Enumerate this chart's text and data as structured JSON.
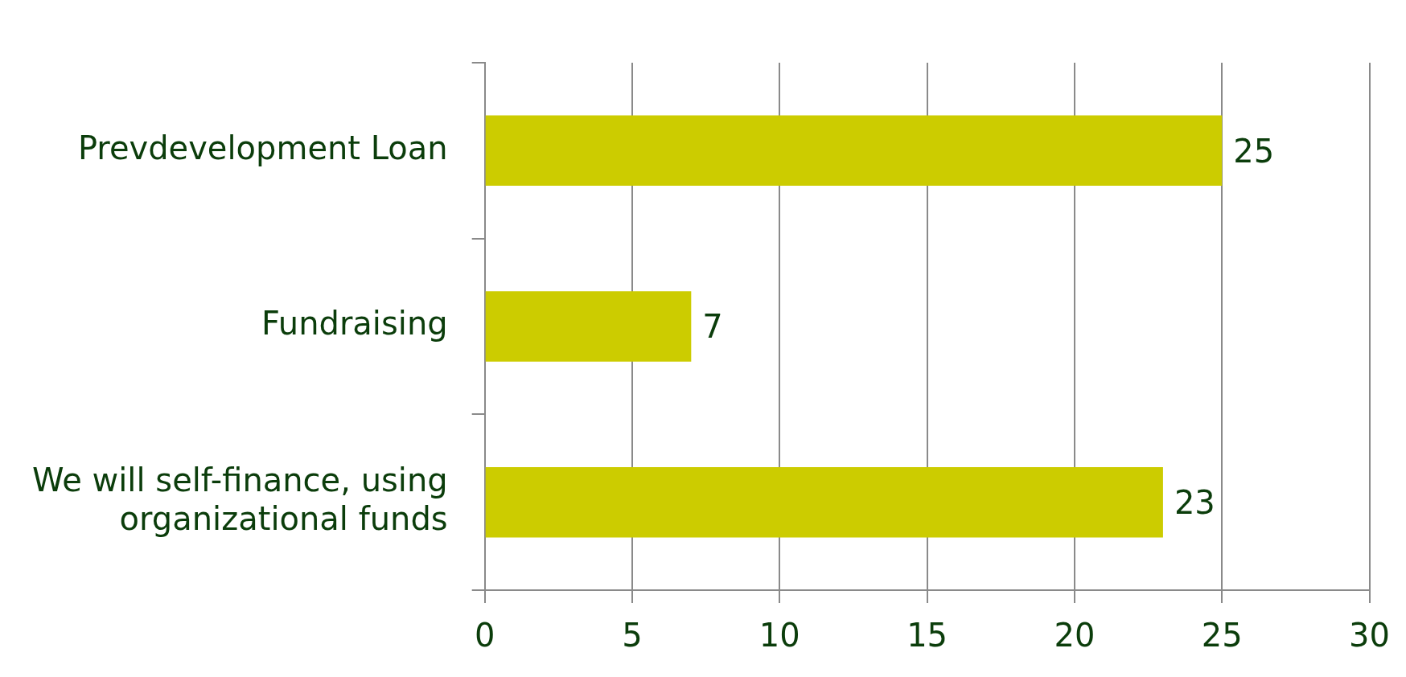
{
  "chart_data": {
    "type": "bar",
    "orientation": "horizontal",
    "categories": [
      "Prevdevelopment Loan",
      "Fundraising",
      "We will self-finance, using organizational funds"
    ],
    "values": [
      25,
      7,
      23
    ],
    "color": "#cccc00",
    "xlim": [
      0,
      30
    ],
    "xticks": [
      0,
      5,
      10,
      15,
      20,
      25,
      30
    ],
    "grid": "x",
    "data_labels": true
  }
}
